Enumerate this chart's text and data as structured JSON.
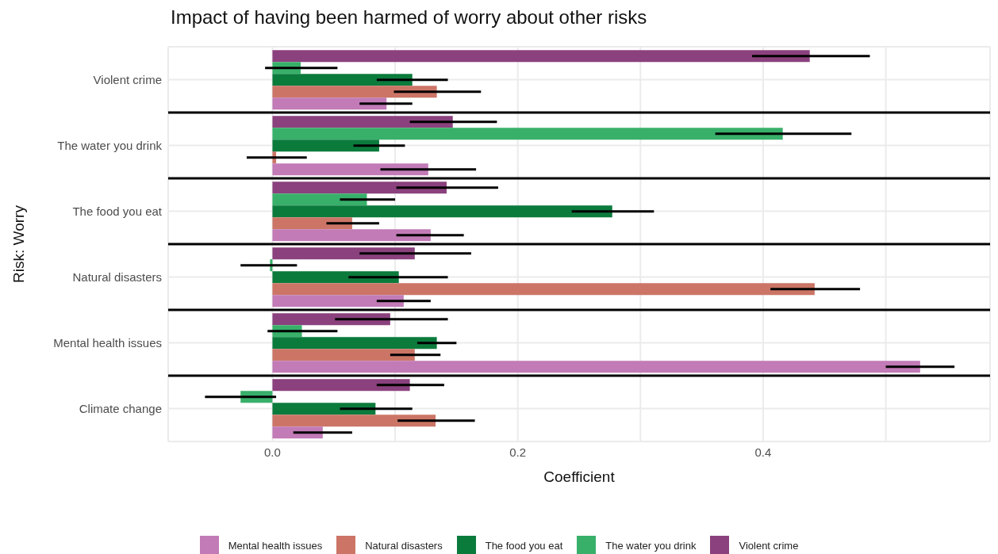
{
  "chart_data": {
    "type": "bar",
    "orientation": "horizontal",
    "title": "Impact of having been harmed of worry about other risks",
    "xlabel": "Coefficient",
    "ylabel": "Risk: Worry",
    "categories": [
      "Violent crime",
      "The water you drink",
      "The food you eat",
      "Natural disasters",
      "Mental health issues",
      "Climate change"
    ],
    "series": [
      {
        "name": "Mental health issues",
        "color": "#c27bb7",
        "values": [
          0.093,
          0.127,
          0.129,
          0.107,
          0.528,
          0.041
        ],
        "errors": [
          [
            0.071,
            0.114
          ],
          [
            0.088,
            0.166
          ],
          [
            0.101,
            0.156
          ],
          [
            0.085,
            0.129
          ],
          [
            0.5,
            0.556
          ],
          [
            0.017,
            0.065
          ]
        ]
      },
      {
        "name": "Natural disasters",
        "color": "#cc7566",
        "values": [
          0.134,
          0.003,
          0.065,
          0.442,
          0.116,
          0.133
        ],
        "errors": [
          [
            0.099,
            0.17
          ],
          [
            -0.021,
            0.028
          ],
          [
            0.044,
            0.087
          ],
          [
            0.406,
            0.479
          ],
          [
            0.096,
            0.137
          ],
          [
            0.102,
            0.165
          ]
        ]
      },
      {
        "name": "The food you eat",
        "color": "#0b7b3c",
        "values": [
          0.114,
          0.087,
          0.277,
          0.103,
          0.134,
          0.084
        ],
        "errors": [
          [
            0.085,
            0.143
          ],
          [
            0.066,
            0.108
          ],
          [
            0.244,
            0.311
          ],
          [
            0.062,
            0.143
          ],
          [
            0.118,
            0.15
          ],
          [
            0.055,
            0.114
          ]
        ]
      },
      {
        "name": "The water you drink",
        "color": "#38b06a",
        "values": [
          0.023,
          0.416,
          0.077,
          -0.002,
          0.024,
          -0.026
        ],
        "errors": [
          [
            -0.006,
            0.053
          ],
          [
            0.361,
            0.472
          ],
          [
            0.055,
            0.1
          ],
          [
            -0.026,
            0.02
          ],
          [
            -0.004,
            0.053
          ],
          [
            -0.055,
            0.003
          ]
        ]
      },
      {
        "name": "Violent crime",
        "color": "#8b417e",
        "values": [
          0.438,
          0.147,
          0.142,
          0.116,
          0.096,
          0.112
        ],
        "errors": [
          [
            0.391,
            0.487
          ],
          [
            0.112,
            0.183
          ],
          [
            0.101,
            0.184
          ],
          [
            0.071,
            0.162
          ],
          [
            0.051,
            0.143
          ],
          [
            0.085,
            0.14
          ]
        ]
      }
    ],
    "xlim": [
      -0.085,
      0.585
    ],
    "xticks": [
      {
        "value": 0,
        "label": "0.0"
      },
      {
        "value": 0.1,
        "label": null
      },
      {
        "value": 0.2,
        "label": "0.2"
      },
      {
        "value": 0.3,
        "label": null
      },
      {
        "value": 0.4,
        "label": "0.4"
      },
      {
        "value": 0.5,
        "label": null
      }
    ],
    "grid": true,
    "legend": "bottom"
  }
}
